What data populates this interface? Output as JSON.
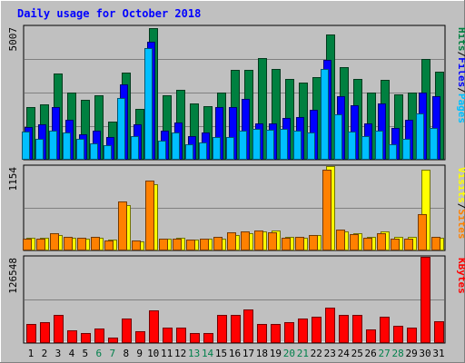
{
  "chart_data": {
    "type": "bar",
    "title": "Daily usage for October 2018",
    "days": [
      "1",
      "2",
      "3",
      "4",
      "5",
      "6",
      "7",
      "8",
      "9",
      "10",
      "11",
      "12",
      "13",
      "14",
      "15",
      "16",
      "17",
      "18",
      "19",
      "20",
      "21",
      "22",
      "23",
      "24",
      "25",
      "26",
      "27",
      "28",
      "29",
      "30",
      "31"
    ],
    "weekend_days": [
      "6",
      "7",
      "13",
      "14",
      "20",
      "21",
      "27",
      "28"
    ],
    "panels": [
      {
        "name": "hits-files-pages",
        "ymax_label": "5007",
        "ymax": 5007,
        "legend": [
          "Pages",
          "Files",
          "Hits"
        ],
        "series": [
          {
            "name": "Hits",
            "color": "#008040",
            "values": [
              1950,
              2070,
              3230,
              2520,
              2230,
              2400,
              1390,
              3250,
              1890,
              4950,
              2410,
              2600,
              2080,
              2000,
              2490,
              3360,
              3360,
              3800,
              3400,
              3020,
              2880,
              3080,
              4690,
              3480,
              3020,
              2510,
              2980,
              2420,
              2510,
              3770,
              3300
            ]
          },
          {
            "name": "Files",
            "color": "#0000ff",
            "values": [
              1200,
              1300,
              1950,
              1460,
              940,
              1050,
              830,
              2800,
              1300,
              4440,
              1060,
              1380,
              870,
              980,
              1950,
              1950,
              2280,
              1330,
              1340,
              1560,
              1590,
              1850,
              3750,
              2350,
              2020,
              1330,
              2080,
              1160,
              1460,
              2500,
              2380
            ]
          },
          {
            "name": "Pages",
            "color": "#00bfff",
            "values": [
              1020,
              770,
              1080,
              1000,
              740,
              590,
              500,
              2300,
              850,
              4200,
              670,
              1000,
              560,
              620,
              820,
              810,
              1060,
              1120,
              1090,
              1120,
              1050,
              1000,
              3400,
              1680,
              1040,
              850,
              1060,
              560,
              760,
              1720,
              1160
            ]
          }
        ]
      },
      {
        "name": "visits-sites",
        "ymax_label": "1154",
        "ymax": 1154,
        "legend": [
          "Sites",
          "Visits"
        ],
        "series": [
          {
            "name": "Visits",
            "color": "#ffff00",
            "values": [
              160,
              165,
              200,
              160,
              155,
              165,
              135,
              610,
              110,
              900,
              155,
              160,
              140,
              145,
              155,
              200,
              220,
              255,
              260,
              170,
              160,
              200,
              1150,
              250,
              230,
              180,
              255,
              170,
              175,
              1110,
              160
            ]
          },
          {
            "name": "Sites",
            "color": "#ff8000",
            "values": [
              155,
              155,
              220,
              175,
              160,
              170,
              130,
              660,
              120,
              950,
              150,
              155,
              140,
              150,
              175,
              235,
              245,
              260,
              235,
              165,
              175,
              200,
              1100,
              270,
              210,
              165,
              225,
              155,
              155,
              495,
              170
            ]
          }
        ]
      },
      {
        "name": "kbytes",
        "ymax_label": "126548",
        "ymax": 126548,
        "legend": [
          "KBytes"
        ],
        "series": [
          {
            "name": "KBytes",
            "color": "#ff0000",
            "values": [
              27000,
              29000,
              40000,
              18000,
              13000,
              20000,
              7000,
              35000,
              16000,
              47000,
              21000,
              22000,
              13000,
              13000,
              41000,
              40000,
              48000,
              27000,
              27000,
              29000,
              35000,
              38000,
              51000,
              40000,
              41000,
              19000,
              38000,
              24000,
              22000,
              126548,
              31000
            ]
          }
        ]
      }
    ]
  },
  "colors": {
    "background": "#c0c0c0",
    "title": "#0000ff",
    "weekday_label": "#000000",
    "weekend_label": "#00804b",
    "gridline": "#808080"
  }
}
